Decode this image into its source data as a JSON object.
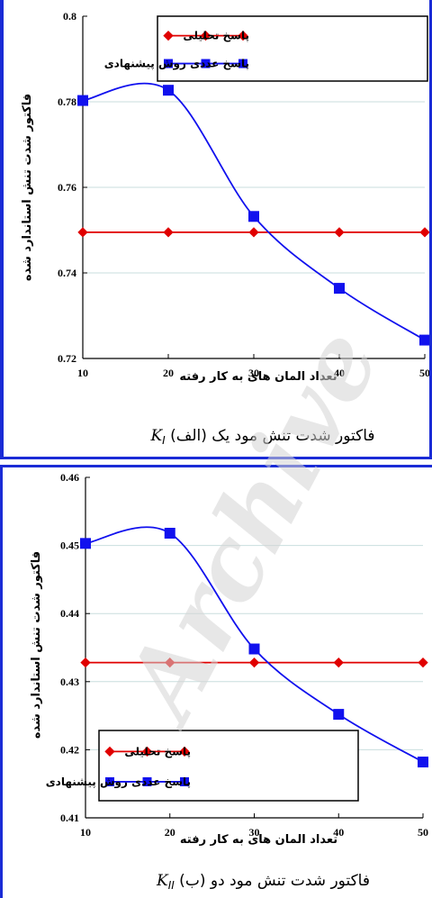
{
  "watermark": "Archive",
  "colors": {
    "analytic": "#e00000",
    "numeric": "#1111ee",
    "grid": "#c9dede",
    "frame": "#1a2bd6"
  },
  "chart_data": [
    {
      "type": "line",
      "panel": "a",
      "x": [
        10,
        20,
        30,
        40,
        50
      ],
      "xlim": [
        10,
        50
      ],
      "ylim": [
        0.72,
        0.8
      ],
      "x_ticks": [
        "10",
        "20",
        "30",
        "40",
        "50"
      ],
      "y_ticks": [
        "0.72",
        "0.74",
        "0.76",
        "0.78",
        "0.8"
      ],
      "ylabel": "فاکتور شدت تنش استاندارد شده",
      "xlabel": "تعداد المان های به کار رفته",
      "caption": "(الف) فاکتور شدت تنش مود یک",
      "caption_symbol": "K",
      "caption_sub": "I",
      "grid": true,
      "legend_position": "top-right",
      "series": [
        {
          "name": "پاسخ تحلیلی",
          "marker": "diamond",
          "color": "#e00000",
          "smooth": false,
          "values": [
            0.7495,
            0.7495,
            0.7495,
            0.7495,
            0.7495
          ]
        },
        {
          "name": "پاسخ عددی روش پیشنهادی",
          "marker": "square",
          "color": "#1111ee",
          "smooth": true,
          "values": [
            0.7803,
            0.7827,
            0.7532,
            0.7364,
            0.7243
          ]
        }
      ]
    },
    {
      "type": "line",
      "panel": "b",
      "x": [
        10,
        20,
        30,
        40,
        50
      ],
      "xlim": [
        10,
        50
      ],
      "ylim": [
        0.41,
        0.46
      ],
      "x_ticks": [
        "10",
        "20",
        "30",
        "40",
        "50"
      ],
      "y_ticks": [
        "0.41",
        "0.42",
        "0.43",
        "0.44",
        "0.45",
        "0.46"
      ],
      "ylabel": "فاکتور شدت تنش استاندارد شده",
      "xlabel": "تعداد المان های به کار رفته",
      "caption": "(ب) فاکتور شدت تنش مود دو",
      "caption_symbol": "K",
      "caption_sub": "II",
      "grid": true,
      "legend_position": "bottom-left",
      "series": [
        {
          "name": "پاسخ تحلیلی",
          "marker": "diamond",
          "color": "#e00000",
          "smooth": false,
          "values": [
            0.4328,
            0.4328,
            0.4328,
            0.4328,
            0.4328
          ]
        },
        {
          "name": "پاسخ عددی روش پیشنهادی",
          "marker": "square",
          "color": "#1111ee",
          "smooth": true,
          "values": [
            0.4503,
            0.4518,
            0.4348,
            0.4252,
            0.4182
          ]
        }
      ]
    }
  ]
}
